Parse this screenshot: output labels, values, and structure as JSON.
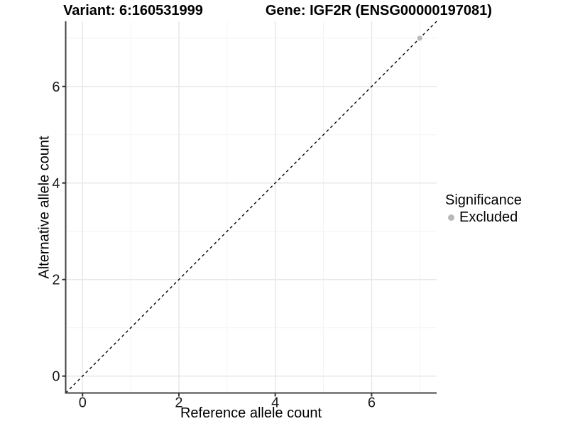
{
  "header": {
    "variant_title": "Variant: 6:160531999",
    "gene_title": "Gene: IGF2R (ENSG00000197081)"
  },
  "axes": {
    "x_title": "Reference allele count",
    "y_title": "Alternative allele count",
    "x_tick_labels": [
      "0",
      "2",
      "4",
      "6"
    ],
    "y_tick_labels": [
      "0",
      "2",
      "4",
      "6"
    ]
  },
  "legend": {
    "title": "Significance",
    "items": [
      {
        "label": "Excluded",
        "color": "#b9b9b9"
      }
    ]
  },
  "colors": {
    "background": "#ffffff",
    "grid_major": "#e8e8e8",
    "grid_minor": "#f4f4f4",
    "axis_line": "#404040",
    "tick_mark": "#333333",
    "tick_label": "#1a1a1a",
    "reference_line": "#000000",
    "excluded_point": "#b9b9b9"
  },
  "chart_data": {
    "type": "scatter",
    "title": "Variant: 6:160531999   Gene: IGF2R (ENSG00000197081)",
    "xlabel": "Reference allele count",
    "ylabel": "Alternative allele count",
    "xlim": [
      -0.35,
      7.35
    ],
    "ylim": [
      -0.35,
      7.35
    ],
    "x_ticks": [
      0,
      2,
      4,
      6
    ],
    "y_ticks": [
      0,
      2,
      4,
      6
    ],
    "x_minor_ticks": [
      1,
      3,
      5,
      7
    ],
    "y_minor_ticks": [
      1,
      3,
      5,
      7
    ],
    "grid": "major and minor, light gray on white",
    "legend_position": "right-center",
    "series": [
      {
        "name": "Excluded",
        "type": "scatter",
        "color": "#b9b9b9",
        "points": [
          {
            "x": 7,
            "y": 7
          }
        ]
      }
    ],
    "reference_line": {
      "kind": "identity",
      "slope": 1,
      "intercept": 0,
      "linetype": "dashed",
      "color": "#000000"
    }
  }
}
